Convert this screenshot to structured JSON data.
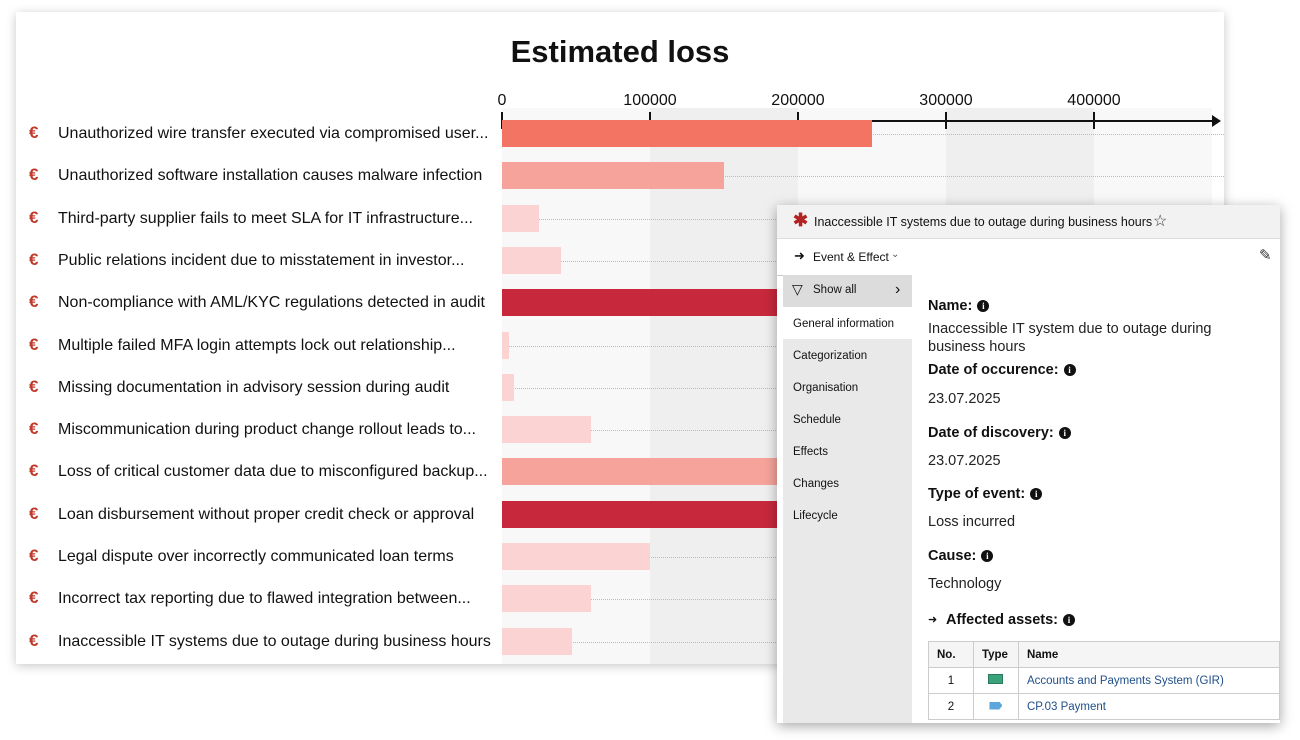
{
  "chart_data": {
    "type": "bar",
    "orientation": "horizontal",
    "title": "Estimated loss",
    "xlim": [
      0,
      480000
    ],
    "ticks": [
      0,
      100000,
      200000,
      300000,
      400000
    ],
    "tick_labels": [
      "0",
      "100000",
      "200000",
      "300000",
      "400000"
    ],
    "categories": [
      "Unauthorized wire transfer executed via compromised user...",
      "Unauthorized software installation causes malware infection",
      "Third-party supplier fails to meet SLA for IT infrastructure...",
      "Public relations incident due to misstatement in investor...",
      "Non-compliance with AML/KYC regulations detected in audit",
      "Multiple failed MFA login attempts lock out relationship...",
      "Missing documentation in advisory session during audit",
      "Miscommunication during product change rollout leads to...",
      "Loss of critical customer data due to misconfigured backup...",
      "Loan disbursement without proper credit check or approval",
      "Legal dispute over incorrectly communicated loan terms",
      "Incorrect tax reporting due to flawed integration between...",
      "Inaccessible IT systems due to outage during business hours"
    ],
    "values": [
      250000,
      150000,
      25000,
      40000,
      350000,
      5000,
      8000,
      60000,
      300000,
      400000,
      100000,
      60000,
      47000
    ],
    "colors": [
      "#f47464",
      "#f6a49b",
      "#fcd3d3",
      "#fcd3d3",
      "#c8283c",
      "#fcd3d3",
      "#fcd3d3",
      "#fcd3d3",
      "#f6a49b",
      "#c8283c",
      "#fcd3d3",
      "#fcd3d3",
      "#fcd3d3"
    ],
    "row_icon": "€",
    "grid": true
  },
  "panel": {
    "title": "Inaccessible IT systems due to outage during business hours",
    "toolbar_label": "Event & Effect",
    "nav": [
      "Show all",
      "General information",
      "Categorization",
      "Organisation",
      "Schedule",
      "Effects",
      "Changes",
      "Lifecycle"
    ],
    "fields": {
      "name_label": "Name:",
      "name_value": "Inaccessible IT system due to outage during business hours",
      "occurrence_label": "Date of occurence:",
      "occurrence_value": "23.07.2025",
      "discovery_label": "Date of discovery:",
      "discovery_value": "23.07.2025",
      "type_label": "Type of event:",
      "type_value": "Loss incurred",
      "cause_label": "Cause:",
      "cause_value": "Technology",
      "assets_label": "Affected assets:"
    },
    "table": {
      "headers": [
        "No.",
        "Type",
        "Name"
      ],
      "rows": [
        {
          "no": "1",
          "type_icon": "system-icon",
          "type_color": "#3aa37c",
          "name": "Accounts and Payments System (GIR)"
        },
        {
          "no": "2",
          "type_icon": "process-icon",
          "type_color": "#5aa6dd",
          "name": "CP.03 Payment"
        }
      ]
    }
  }
}
